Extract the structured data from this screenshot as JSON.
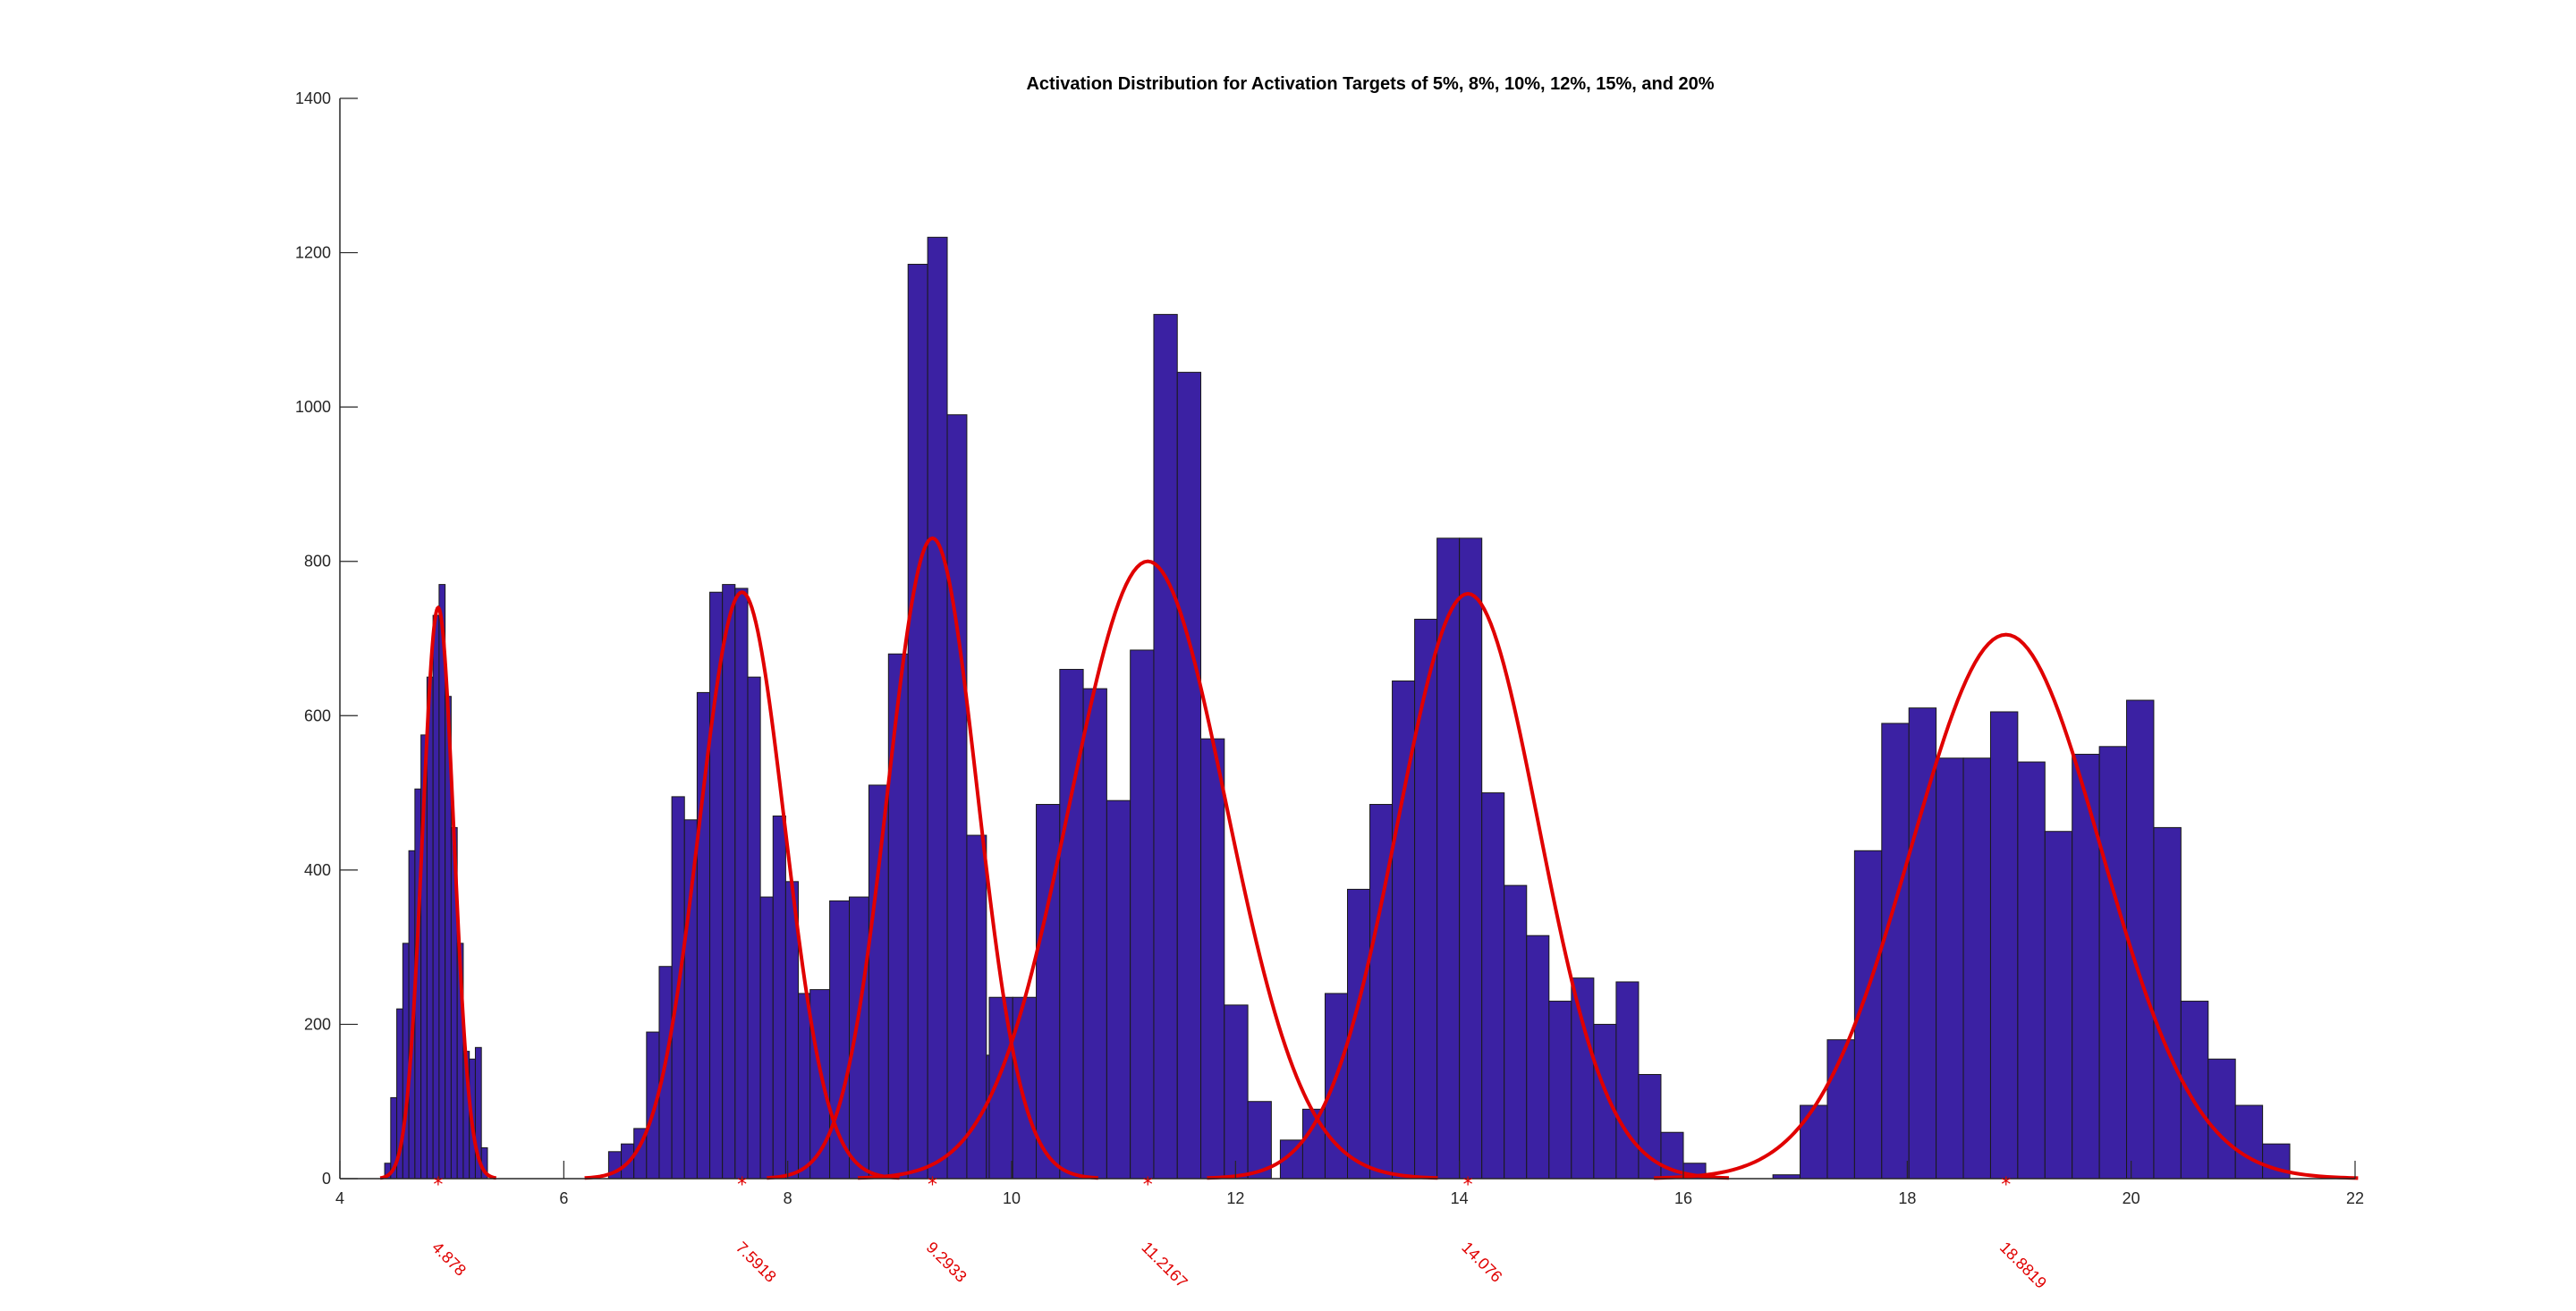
{
  "chart_data": {
    "type": "bar",
    "title": "Activation Distribution for Activation Targets of 5%, 8%, 10%, 12%, 15%, and 20%",
    "xlabel": "",
    "ylabel": "",
    "xlim": [
      4,
      22
    ],
    "ylim": [
      0,
      1400
    ],
    "xticks": [
      4,
      6,
      8,
      10,
      12,
      14,
      16,
      18,
      20,
      22
    ],
    "yticks": [
      0,
      200,
      400,
      600,
      800,
      1000,
      1200,
      1400
    ],
    "grid": false,
    "colors": {
      "bar_fill": "#3b21a3",
      "bar_edge": "#1a1a1a",
      "fit": "#e00000"
    },
    "series": [
      {
        "mean": 4.878,
        "mean_label": "4.878",
        "fit_peak": 740,
        "fit_sigma": 0.14,
        "bin_width": 0.054,
        "bin_starts": [
          4.4,
          4.454,
          4.508,
          4.562,
          4.616,
          4.67,
          4.724,
          4.778,
          4.832,
          4.886,
          4.94,
          4.994,
          5.048,
          5.102,
          5.156,
          5.21,
          5.264,
          5.318
        ],
        "values": [
          20,
          105,
          220,
          305,
          425,
          505,
          575,
          650,
          730,
          770,
          625,
          455,
          305,
          165,
          155,
          170,
          40,
          0
        ]
      },
      {
        "mean": 7.5918,
        "mean_label": "7.5918",
        "fit_peak": 760,
        "fit_sigma": 0.38,
        "bin_width": 0.113,
        "bin_starts": [
          6.4,
          6.513,
          6.626,
          6.739,
          6.852,
          6.965,
          7.078,
          7.191,
          7.304,
          7.417,
          7.53,
          7.643,
          7.756,
          7.869,
          7.982,
          8.095,
          8.208,
          8.321,
          8.434,
          8.547,
          8.66
        ],
        "values": [
          35,
          45,
          65,
          190,
          275,
          495,
          465,
          630,
          760,
          770,
          765,
          650,
          365,
          470,
          385,
          240,
          175,
          90,
          80,
          30,
          0
        ]
      },
      {
        "mean": 9.2933,
        "mean_label": "9.2933",
        "fit_peak": 830,
        "fit_sigma": 0.4,
        "bin_width": 0.175,
        "bin_starts": [
          8.2,
          8.375,
          8.55,
          8.725,
          8.9,
          9.075,
          9.25,
          9.425,
          9.6,
          9.775,
          9.95,
          10.125,
          10.3,
          10.475,
          10.65,
          10.825,
          11.0,
          11.175
        ],
        "values": [
          245,
          360,
          365,
          510,
          680,
          1185,
          1220,
          990,
          445,
          160,
          60,
          40,
          90,
          160,
          85,
          85,
          50,
          0
        ]
      },
      {
        "mean": 11.2167,
        "mean_label": "11.2167",
        "fit_peak": 800,
        "fit_sigma": 0.7,
        "bin_width": 0.21,
        "bin_starts": [
          9.8,
          10.01,
          10.22,
          10.43,
          10.64,
          10.85,
          11.06,
          11.27,
          11.48,
          11.69,
          11.9,
          12.11
        ],
        "values": [
          235,
          235,
          485,
          660,
          635,
          490,
          685,
          1120,
          1045,
          570,
          225,
          100
        ]
      },
      {
        "mean": 14.076,
        "mean_label": "14.076",
        "fit_peak": 758,
        "fit_sigma": 0.63,
        "bin_width": 0.2,
        "bin_starts": [
          12.4,
          12.6,
          12.8,
          13.0,
          13.2,
          13.4,
          13.6,
          13.8,
          14.0,
          14.2,
          14.4,
          14.6,
          14.8,
          15.0,
          15.2,
          15.4,
          15.6,
          15.8,
          16.0,
          16.2
        ],
        "values": [
          50,
          90,
          240,
          375,
          485,
          645,
          725,
          830,
          830,
          500,
          380,
          315,
          230,
          260,
          200,
          255,
          135,
          60,
          20,
          0
        ]
      },
      {
        "mean": 18.8819,
        "mean_label": "18.8819",
        "fit_peak": 705,
        "fit_sigma": 0.85,
        "bin_width": 0.243,
        "bin_starts": [
          16.8,
          17.043,
          17.286,
          17.529,
          17.772,
          18.015,
          18.258,
          18.501,
          18.744,
          18.987,
          19.23,
          19.473,
          19.716,
          19.959,
          20.202,
          20.445,
          20.688,
          20.931,
          21.174
        ],
        "values": [
          5,
          95,
          180,
          425,
          590,
          610,
          545,
          545,
          605,
          540,
          450,
          550,
          560,
          620,
          455,
          230,
          155,
          95,
          45
        ]
      }
    ]
  }
}
